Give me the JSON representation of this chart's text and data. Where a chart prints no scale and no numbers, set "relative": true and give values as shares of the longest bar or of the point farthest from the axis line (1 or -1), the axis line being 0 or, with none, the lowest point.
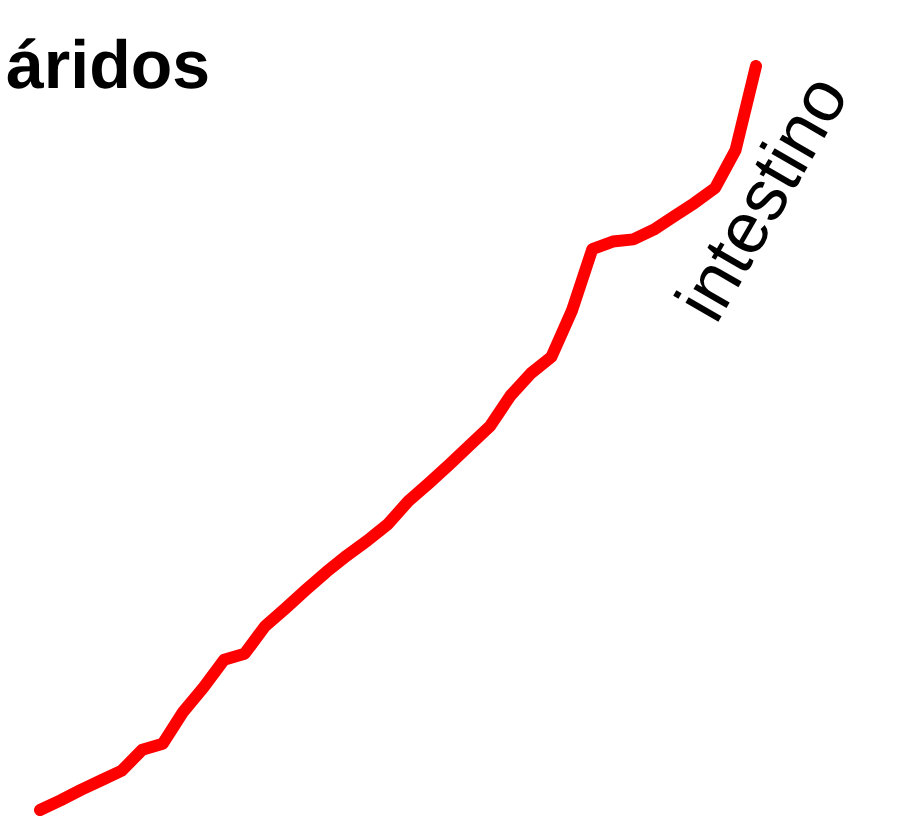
{
  "chart_data": {
    "type": "line",
    "title": "áridos",
    "relative": true,
    "line_style": "solid",
    "categories": [
      null,
      null,
      null,
      null,
      null,
      null,
      null,
      null,
      null,
      null,
      null,
      null,
      null,
      null,
      null,
      null,
      null,
      null,
      null,
      null,
      null,
      null,
      null,
      null,
      null,
      null,
      null,
      null,
      null,
      null,
      null,
      null,
      null,
      null,
      null,
      null
    ],
    "series": [
      {
        "name": "intestino",
        "color": "#ff0000",
        "values": [
          0,
          0.013,
          0.027,
          0.04,
          0.053,
          0.081,
          0.089,
          0.132,
          0.165,
          0.202,
          0.21,
          0.247,
          0.271,
          0.296,
          0.32,
          0.342,
          0.362,
          0.384,
          0.415,
          0.439,
          0.464,
          0.49,
          0.516,
          0.557,
          0.587,
          0.609,
          0.671,
          0.754,
          0.764,
          0.767,
          0.78,
          0.798,
          0.816,
          0.836,
          0.887,
          1
        ]
      }
    ]
  }
}
